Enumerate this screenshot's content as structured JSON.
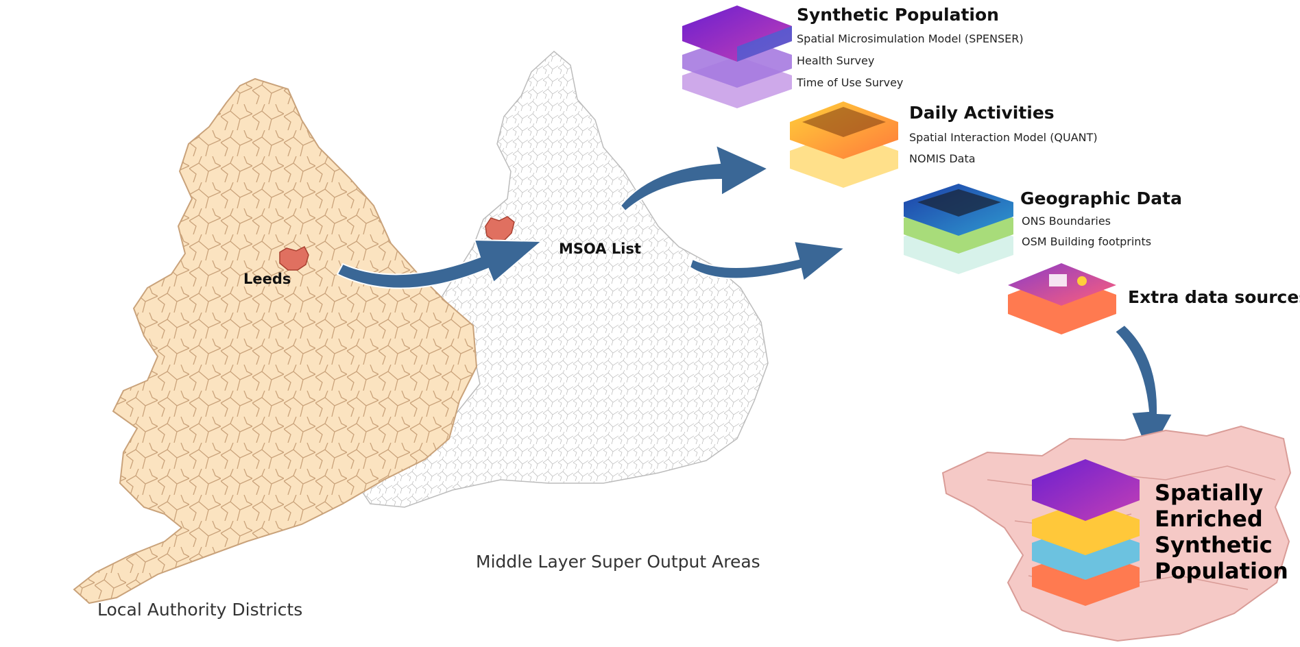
{
  "maps": {
    "lad_caption": "Local Authority Districts",
    "msoa_caption": "Middle Layer Super Output Areas",
    "leeds_label": "Leeds",
    "msoa_list_label": "MSOA List"
  },
  "sources": [
    {
      "title": "Synthetic Population",
      "items": [
        "Spatial Microsimulation Model (SPENSER)",
        "Health Survey",
        "Time of Use Survey"
      ]
    },
    {
      "title": "Daily Activities",
      "items": [
        "Spatial Interaction Model (QUANT)",
        "NOMIS Data"
      ]
    },
    {
      "title": "Geographic Data",
      "items": [
        "ONS Boundaries",
        "OSM Building footprints"
      ]
    },
    {
      "title": "Extra data sources",
      "items": []
    }
  ],
  "result": {
    "lines": [
      "Spatially",
      "Enriched",
      "Synthetic",
      "Population"
    ]
  },
  "colors": {
    "lad_fill": "#fbe3c0",
    "lad_border": "#c9a27a",
    "leeds": "#e07060",
    "arrow": "#3a6796",
    "result_map": "#f5c9c6"
  }
}
